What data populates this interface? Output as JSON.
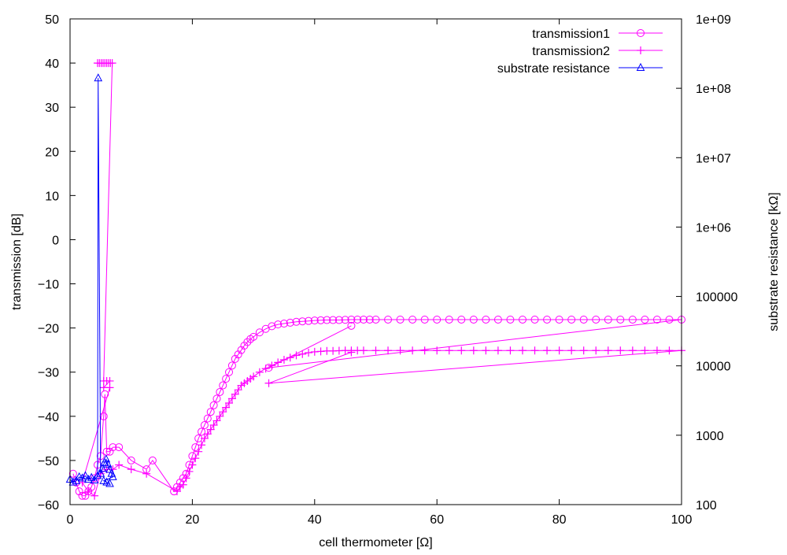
{
  "chart_data": {
    "type": "scatter",
    "title": "",
    "xlabel": "cell thermometer [Ω]",
    "ylabel": "transmission [dB]",
    "y2label": "substrate resistance [kΩ]",
    "xlim": [
      0,
      100
    ],
    "ylim": [
      -60,
      50
    ],
    "y2lim": [
      100,
      1000000000
    ],
    "y2scale": "log",
    "grid": false,
    "legend_position": "top-right",
    "xticks": [
      "0",
      "20",
      "40",
      "60",
      "80",
      "100"
    ],
    "yticks": [
      "−60",
      "−50",
      "−40",
      "−30",
      "−20",
      "−10",
      "0",
      "10",
      "20",
      "30",
      "40",
      "50"
    ],
    "y2ticks": [
      "100",
      "1000",
      "10000",
      "100000",
      "1e+06",
      "1e+07",
      "1e+08",
      "1e+09"
    ],
    "series": [
      {
        "name": "transmission1",
        "axis": "y",
        "color": "#ff00ff",
        "marker": "circle",
        "x": [
          0.5,
          1,
          1.5,
          2,
          2.5,
          3,
          3.5,
          4,
          4.5,
          5,
          5.5,
          5.7,
          6,
          6.5,
          7,
          8,
          10,
          12.5,
          13.5,
          17,
          17.5,
          18,
          18.5,
          19,
          19.5,
          20,
          20.5,
          21,
          21.5,
          22,
          22.5,
          23,
          23.5,
          24,
          24.5,
          25,
          25.5,
          26,
          26.5,
          27,
          27.5,
          28,
          28.5,
          29,
          29.5,
          30,
          31,
          32,
          33,
          34,
          35,
          36,
          37,
          38,
          39,
          40,
          41,
          42,
          43,
          44,
          45,
          46,
          47,
          48,
          49,
          50,
          52,
          54,
          56,
          58,
          60,
          62,
          64,
          66,
          68,
          70,
          72,
          74,
          76,
          78,
          80,
          82,
          84,
          86,
          88,
          90,
          92,
          94,
          96,
          98,
          100,
          32.5,
          46
        ],
        "y": [
          -53,
          -55,
          -57,
          -58,
          -58,
          -57,
          -56,
          -54,
          -51,
          -49,
          -40,
          -35,
          -48,
          -48,
          -47,
          -47,
          -50,
          -52,
          -50,
          -57,
          -56,
          -55,
          -54,
          -53,
          -51,
          -49,
          -47,
          -45,
          -43.5,
          -42,
          -40.5,
          -39,
          -37.5,
          -36,
          -34.5,
          -33,
          -31.5,
          -30,
          -28.5,
          -27,
          -26,
          -25,
          -24,
          -23.2,
          -22.5,
          -22,
          -21,
          -20.2,
          -19.6,
          -19.2,
          -19,
          -18.8,
          -18.6,
          -18.5,
          -18.4,
          -18.3,
          -18.25,
          -18.2,
          -18.2,
          -18.2,
          -18.15,
          -18.1,
          -18.1,
          -18.1,
          -18.1,
          -18.1,
          -18.1,
          -18.1,
          -18.1,
          -18.1,
          -18.1,
          -18.1,
          -18.1,
          -18.1,
          -18.1,
          -18.1,
          -18.1,
          -18.1,
          -18.1,
          -18.1,
          -18.1,
          -18.1,
          -18.1,
          -18.1,
          -18.1,
          -18.1,
          -18.1,
          -18.1,
          -18.1,
          -18.1,
          -18.1,
          -29,
          -19.5
        ]
      },
      {
        "name": "transmission2",
        "axis": "y",
        "color": "#ff00ff",
        "marker": "plus",
        "x": [
          4.5,
          4.8,
          5.1,
          5.4,
          5.7,
          6,
          6.3,
          6.6,
          6.9,
          5.5,
          6,
          6.5,
          5.5,
          6.5,
          2,
          3,
          4,
          5,
          6,
          7,
          8,
          10,
          12.5,
          17.5,
          18,
          18.5,
          19,
          19.5,
          20,
          20.5,
          21,
          21.5,
          22,
          22.5,
          23,
          23.5,
          24,
          24.5,
          25,
          25.5,
          26,
          26.5,
          27,
          27.5,
          28,
          28.5,
          29,
          29.5,
          30,
          31,
          32,
          33,
          34,
          35,
          36,
          37,
          38,
          39,
          40,
          41,
          42,
          43,
          44,
          45,
          46,
          47,
          48,
          50,
          52,
          54,
          56,
          58,
          60,
          62,
          64,
          66,
          68,
          70,
          72,
          74,
          76,
          78,
          80,
          82,
          84,
          86,
          88,
          90,
          92,
          94,
          96,
          98,
          100,
          32.5,
          46
        ],
        "y": [
          40,
          40,
          40,
          40,
          40,
          40,
          40,
          40,
          40,
          -32,
          -32,
          -32,
          -33.5,
          -33.5,
          -55,
          -57,
          -58,
          -53,
          -52,
          -52,
          -51,
          -52,
          -53,
          -57,
          -56,
          -55.5,
          -54,
          -52.5,
          -51,
          -49.5,
          -48,
          -46.5,
          -45,
          -44,
          -43,
          -42,
          -41,
          -40,
          -39,
          -38,
          -37,
          -36,
          -35,
          -34,
          -33,
          -32.5,
          -32,
          -31.5,
          -31,
          -30,
          -29.2,
          -28.5,
          -27.8,
          -27.2,
          -26.7,
          -26.2,
          -25.9,
          -25.6,
          -25.4,
          -25.3,
          -25.2,
          -25.2,
          -25.15,
          -25.1,
          -25.1,
          -25.1,
          -25.1,
          -25.1,
          -25.1,
          -25.1,
          -25.1,
          -25.1,
          -25.1,
          -25.1,
          -25.1,
          -25.1,
          -25.1,
          -25.1,
          -25.1,
          -25.1,
          -25.1,
          -25.1,
          -25.1,
          -25.1,
          -25.1,
          -25.1,
          -25.1,
          -25.1,
          -25.1,
          -25.1,
          -25.1,
          -25.1,
          -25.1,
          -32.5,
          -25.5
        ]
      },
      {
        "name": "substrate resistance",
        "axis": "y2",
        "color": "#0000ff",
        "marker": "triangle",
        "x": [
          0,
          0.5,
          1,
          1.5,
          2,
          2.5,
          3,
          3.5,
          4,
          4.5,
          4.6,
          5,
          5.3,
          5.6,
          5.9,
          6.2,
          6.5,
          6.8,
          7,
          5.5,
          6,
          6.5
        ],
        "y": [
          230,
          210,
          220,
          250,
          240,
          260,
          230,
          245,
          225,
          260,
          140000000,
          280,
          330,
          400,
          450,
          380,
          320,
          280,
          250,
          220,
          210,
          200
        ]
      }
    ]
  }
}
